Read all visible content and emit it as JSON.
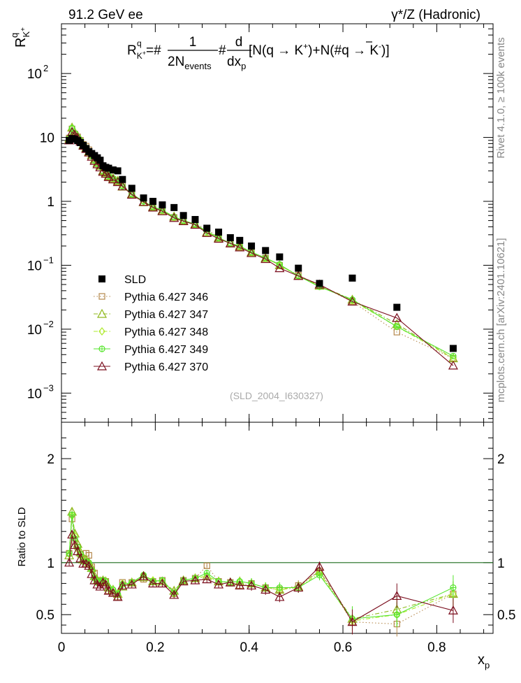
{
  "header": {
    "energy_label": "91.2 GeV ee",
    "process_label": "γ*/Z (Hadronic)"
  },
  "side": {
    "rivet_label": "Rivet 4.1.0, ≥ 100k events",
    "mcplots_label": "mcplots.cern.ch [arXiv:2401.10621]"
  },
  "formula": {
    "lhs_main": "R",
    "lhs_sup": "q",
    "lhs_sub": "K",
    "lhs_subsup": "+",
    "eq_hash": "=#",
    "frac1_num": "1",
    "frac1_den_main": "2N",
    "frac1_den_sub": "events",
    "mid_hash": "#",
    "frac2_num": "d",
    "frac2_den_main": "dx",
    "frac2_den_sub": "p",
    "bracket_part1": "[N(q →  K",
    "bracket_sup1": "+",
    "bracket_part2": ")+N(#",
    "qbar": "q",
    "bracket_part3": " →  K",
    "bracket_sup2": "-",
    "bracket_part4": ")]"
  },
  "watermark": "(SLD_2004_I630327)",
  "ratio_ylabel": "Ratio to SLD",
  "colors": {
    "data": "#000000",
    "p346": "#b5884c",
    "p347": "#8fb81c",
    "p348": "#aeea2c",
    "p349": "#55e52c",
    "p370": "#7a0d1d",
    "refline": "#1b6b1b"
  },
  "chart_data": [
    {
      "type": "line",
      "panel": "main",
      "title": "",
      "xlabel_main": "x",
      "xlabel_sub": "p",
      "ylabel_main": "R",
      "ylabel_sup": "q",
      "ylabel_sub": "K",
      "ylabel_subsup": "+",
      "xlim": [
        0,
        0.92
      ],
      "ylim": [
        0.00035,
        600
      ],
      "yscale": "log",
      "x_ticks": [
        0,
        0.2,
        0.4,
        0.6,
        0.8
      ],
      "y_tick_labels": [
        {
          "v": 100,
          "base": "10",
          "exp": "2"
        },
        {
          "v": 10,
          "base": "10",
          "exp": ""
        },
        {
          "v": 1,
          "base": "1",
          "exp": ""
        },
        {
          "v": 0.1,
          "base": "10",
          "exp": "−1"
        },
        {
          "v": 0.01,
          "base": "10",
          "exp": "−2"
        },
        {
          "v": 0.001,
          "base": "10",
          "exp": "−3"
        }
      ],
      "x": [
        0.0165,
        0.0225,
        0.0285,
        0.0345,
        0.0405,
        0.0465,
        0.0525,
        0.0585,
        0.0645,
        0.0705,
        0.0765,
        0.0825,
        0.0885,
        0.0945,
        0.1005,
        0.11,
        0.12,
        0.13,
        0.15,
        0.175,
        0.195,
        0.215,
        0.24,
        0.26,
        0.285,
        0.31,
        0.335,
        0.36,
        0.38,
        0.405,
        0.435,
        0.465,
        0.505,
        0.55,
        0.62,
        0.715,
        0.835
      ],
      "series": [
        {
          "name": "SLD",
          "marker": "square",
          "line": "none",
          "values": [
            9.0,
            9.6,
            9.4,
            8.9,
            8.3,
            7.5,
            6.7,
            6.0,
            5.6,
            5.2,
            4.8,
            4.4,
            3.6,
            3.4,
            3.3,
            3.1,
            3.0,
            2.2,
            1.6,
            1.13,
            1.0,
            0.88,
            0.8,
            0.6,
            0.52,
            0.38,
            0.33,
            0.27,
            0.245,
            0.2,
            0.17,
            0.135,
            0.09,
            0.052,
            0.063,
            0.022,
            0.005
          ]
        },
        {
          "name": "Pythia 6.427 346",
          "marker": "open-square",
          "line": "dotted",
          "values": [
            9.8,
            13.6,
            11.3,
            10.2,
            9.0,
            7.8,
            7.3,
            6.4,
            5.4,
            4.7,
            4.0,
            3.6,
            3.0,
            2.8,
            2.4,
            2.2,
            2.0,
            1.78,
            1.29,
            0.95,
            0.82,
            0.73,
            0.56,
            0.5,
            0.44,
            0.37,
            0.27,
            0.22,
            0.19,
            0.16,
            0.13,
            0.1,
            0.07,
            0.048,
            0.027,
            0.009,
            0.0035
          ]
        },
        {
          "name": "Pythia 6.427 347",
          "marker": "open-triangle",
          "line": "dashdot",
          "values": [
            9.6,
            14.3,
            12.0,
            10.5,
            9.1,
            7.7,
            6.9,
            6.0,
            5.3,
            4.5,
            4.0,
            3.6,
            3.0,
            2.8,
            2.5,
            2.3,
            2.1,
            1.7,
            1.3,
            0.97,
            0.82,
            0.72,
            0.58,
            0.5,
            0.44,
            0.33,
            0.27,
            0.22,
            0.2,
            0.16,
            0.13,
            0.1,
            0.069,
            0.048,
            0.029,
            0.012,
            0.0035
          ]
        },
        {
          "name": "Pythia 6.427 348",
          "marker": "open-diamond",
          "line": "dashdot",
          "values": [
            9.7,
            13.9,
            11.8,
            10.1,
            8.9,
            7.6,
            6.8,
            5.9,
            5.2,
            4.4,
            3.9,
            3.6,
            2.9,
            2.8,
            2.5,
            2.3,
            2.1,
            1.75,
            1.3,
            1.0,
            0.83,
            0.72,
            0.56,
            0.5,
            0.44,
            0.33,
            0.27,
            0.22,
            0.2,
            0.16,
            0.13,
            0.1,
            0.068,
            0.047,
            0.028,
            0.011,
            0.0035
          ]
        },
        {
          "name": "Pythia 6.427 349",
          "marker": "open-circle-plus",
          "line": "solid",
          "values": [
            9.8,
            14.0,
            11.6,
            10.2,
            9.0,
            7.6,
            6.8,
            6.0,
            5.2,
            4.4,
            3.9,
            3.6,
            3.0,
            2.8,
            2.5,
            2.3,
            2.1,
            1.73,
            1.3,
            1.0,
            0.82,
            0.73,
            0.57,
            0.5,
            0.44,
            0.34,
            0.27,
            0.22,
            0.2,
            0.16,
            0.13,
            0.103,
            0.068,
            0.046,
            0.029,
            0.011,
            0.0038
          ]
        },
        {
          "name": "Pythia 6.427 370",
          "marker": "open-triangle",
          "line": "solid",
          "values": [
            9.0,
            12.2,
            11.0,
            9.9,
            8.6,
            7.4,
            6.6,
            5.8,
            5.0,
            4.3,
            3.8,
            3.4,
            2.9,
            2.7,
            2.4,
            2.2,
            2.0,
            1.72,
            1.27,
            0.98,
            0.8,
            0.7,
            0.55,
            0.49,
            0.43,
            0.32,
            0.26,
            0.22,
            0.19,
            0.155,
            0.125,
            0.09,
            0.068,
            0.05,
            0.027,
            0.015,
            0.0027
          ]
        }
      ]
    },
    {
      "type": "line",
      "panel": "ratio",
      "xlabel_main": "x",
      "xlabel_sub": "p",
      "ylabel": "Ratio to SLD",
      "xlim": [
        0,
        0.92
      ],
      "ylim": [
        0.32,
        2.35
      ],
      "x_tick_labels": [
        "0",
        "0.2",
        "0.4",
        "0.6",
        "0.8"
      ],
      "y_tick_labels": [
        "0.5",
        "1",
        "2"
      ],
      "reference": 1,
      "x": [
        0.0165,
        0.0225,
        0.0285,
        0.0345,
        0.0405,
        0.0465,
        0.0525,
        0.0585,
        0.0645,
        0.0705,
        0.0765,
        0.0825,
        0.0885,
        0.0945,
        0.1005,
        0.11,
        0.12,
        0.13,
        0.15,
        0.175,
        0.195,
        0.215,
        0.24,
        0.26,
        0.285,
        0.31,
        0.335,
        0.36,
        0.38,
        0.405,
        0.435,
        0.465,
        0.505,
        0.55,
        0.62,
        0.715,
        0.835
      ],
      "series": [
        {
          "name": "Pythia 6.427 346",
          "values": [
            1.09,
            1.42,
            1.2,
            1.15,
            1.08,
            1.04,
            1.09,
            1.07,
            0.96,
            0.9,
            0.83,
            0.82,
            0.83,
            0.82,
            0.73,
            0.71,
            0.67,
            0.81,
            0.81,
            0.84,
            0.82,
            0.83,
            0.7,
            0.83,
            0.85,
            0.97,
            0.82,
            0.81,
            0.78,
            0.8,
            0.76,
            0.74,
            0.78,
            0.92,
            0.43,
            0.41,
            0.7
          ]
        },
        {
          "name": "Pythia 6.427 347",
          "values": [
            1.07,
            1.49,
            1.28,
            1.18,
            1.1,
            1.03,
            1.03,
            1.0,
            0.95,
            0.87,
            0.83,
            0.82,
            0.83,
            0.82,
            0.76,
            0.74,
            0.7,
            0.77,
            0.81,
            0.86,
            0.82,
            0.82,
            0.73,
            0.83,
            0.85,
            0.87,
            0.82,
            0.81,
            0.82,
            0.8,
            0.76,
            0.74,
            0.77,
            0.92,
            0.46,
            0.55,
            0.7
          ]
        },
        {
          "name": "Pythia 6.427 348",
          "values": [
            1.08,
            1.45,
            1.26,
            1.13,
            1.07,
            1.01,
            1.01,
            0.98,
            0.93,
            0.85,
            0.81,
            0.82,
            0.81,
            0.82,
            0.76,
            0.74,
            0.7,
            0.8,
            0.81,
            0.88,
            0.83,
            0.82,
            0.7,
            0.83,
            0.85,
            0.87,
            0.82,
            0.81,
            0.82,
            0.8,
            0.76,
            0.74,
            0.76,
            0.9,
            0.44,
            0.5,
            0.7
          ]
        },
        {
          "name": "Pythia 6.427 349",
          "values": [
            1.09,
            1.46,
            1.23,
            1.15,
            1.08,
            1.01,
            1.01,
            1.0,
            0.93,
            0.85,
            0.81,
            0.82,
            0.83,
            0.82,
            0.76,
            0.74,
            0.7,
            0.79,
            0.81,
            0.88,
            0.82,
            0.83,
            0.71,
            0.83,
            0.85,
            0.9,
            0.82,
            0.81,
            0.82,
            0.8,
            0.76,
            0.76,
            0.76,
            0.88,
            0.46,
            0.5,
            0.76
          ]
        },
        {
          "name": "Pythia 6.427 370",
          "values": [
            1.0,
            1.27,
            1.17,
            1.11,
            1.04,
            0.99,
            0.99,
            0.97,
            0.89,
            0.83,
            0.79,
            0.77,
            0.81,
            0.79,
            0.73,
            0.71,
            0.67,
            0.78,
            0.79,
            0.87,
            0.8,
            0.8,
            0.69,
            0.82,
            0.83,
            0.84,
            0.79,
            0.81,
            0.78,
            0.78,
            0.74,
            0.67,
            0.76,
            0.96,
            0.43,
            0.68,
            0.54
          ]
        }
      ]
    }
  ]
}
